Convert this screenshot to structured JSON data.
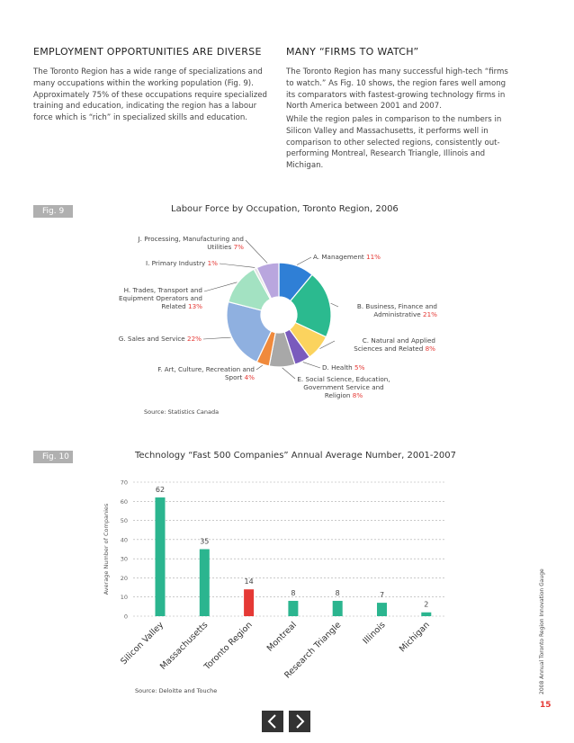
{
  "left": {
    "heading": "EMPLOYMENT OPPORTUNITIES ARE DIVERSE",
    "paragraph": "The Toronto Region has a wide range of specializations and many occupations within the working population (Fig. 9). Approximately 75% of these occupations require specialized training and education, indicating the region has a labour force which is “rich” in specialized skills and education."
  },
  "right": {
    "heading": "MANY “FIRMS TO WATCH”",
    "paragraphs": [
      "The Toronto Region has many successful high-tech “firms to watch.” As Fig. 10 shows, the region fares well among its comparators with fastest-growing technology firms in North America between 2001 and 2007.",
      "While the region pales in comparison to the numbers in Silicon Valley and Massachusetts, it performs well in comparison to other selected regions, consistently out-performing Montreal, Research Triangle, Illinois and Michigan."
    ]
  },
  "fig_labels": [
    "Fig. 9",
    "Fig. 10"
  ],
  "side_note": "2008 Annual Toronto Region Innovation Gauge",
  "page_number": "15",
  "chart_data": [
    {
      "type": "pie",
      "title": "Labour Force by Occupation, Toronto Region, 2006",
      "source": "Source: Statistics Canada",
      "categories": [
        "A. Management",
        "B. Business, Finance and Administrative",
        "C. Natural and Applied Sciences and Related",
        "D. Health",
        "E. Social Science, Education, Government Service and Religion",
        "F. Art, Culture, Recreation and Sport",
        "G. Sales and Service",
        "H. Trades, Transport and Equipment Operators and Related",
        "I. Primary Industry",
        "J. Processing, Manufacturing and Utilities"
      ],
      "values": [
        11,
        21,
        8,
        5,
        8,
        4,
        22,
        13,
        1,
        7
      ],
      "value_labels": [
        "11%",
        "21%",
        "8%",
        "5%",
        "8%",
        "4%",
        "22%",
        "13%",
        "1%",
        "7%"
      ],
      "colors": [
        "#2f7fd6",
        "#2bba8f",
        "#fbd35e",
        "#7a5bbd",
        "#a8a8a8",
        "#f08a3c",
        "#8fb0e0",
        "#a3e2c2",
        "#e4e4e4",
        "#b9a6de"
      ],
      "label_color": "#e53935"
    },
    {
      "type": "bar",
      "title": "Technology “Fast 500 Companies” Annual Average Number, 2001-2007",
      "y_label": "Average Number of Companies",
      "source": "Source: Deloitte and Touche",
      "categories": [
        "Silicon Valley",
        "Massachusetts",
        "Toronto Region",
        "Montreal",
        "Research Triangle",
        "Illinois",
        "Michigan"
      ],
      "values": [
        62,
        35,
        14,
        8,
        8,
        7,
        2
      ],
      "colors": [
        "#2bb58f",
        "#2bb58f",
        "#e53935",
        "#2bb58f",
        "#2bb58f",
        "#2bb58f",
        "#2bb58f"
      ],
      "ylim": [
        0,
        70
      ],
      "yticks": [
        0,
        10,
        20,
        30,
        40,
        50,
        60,
        70
      ],
      "grid": true
    }
  ]
}
